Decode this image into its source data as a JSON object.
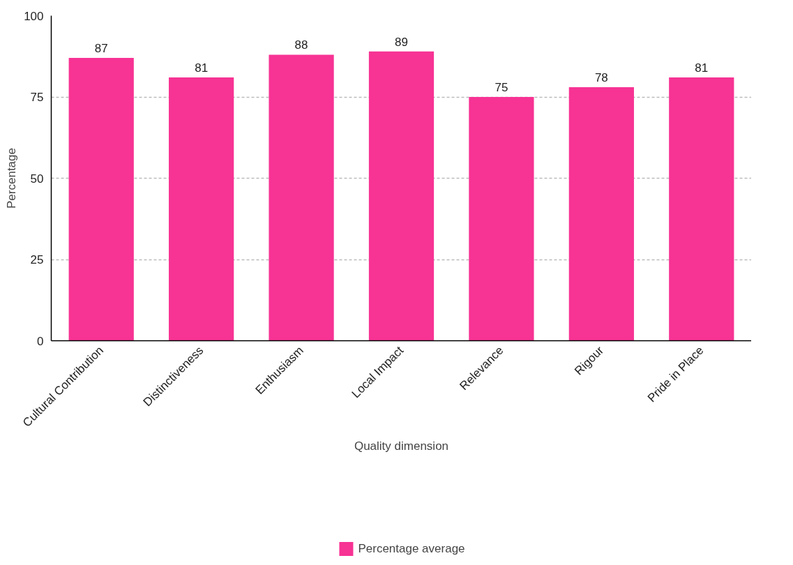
{
  "chart_data": {
    "type": "bar",
    "xlabel": "Quality dimension",
    "ylabel": "Percentage",
    "categories": [
      "Cultural Contribution",
      "Distinctiveness",
      "Enthusiasm",
      "Local Impact",
      "Relevance",
      "Rigour",
      "Pride in Place"
    ],
    "series": [
      {
        "name": "Percentage average",
        "color": "#f73394",
        "values": [
          87,
          81,
          88,
          89,
          75,
          78,
          81
        ]
      }
    ],
    "ylim": [
      0,
      100
    ],
    "yticks": [
      0,
      25,
      50,
      75,
      100
    ],
    "grid": "y",
    "legend": "bottom",
    "data_labels": true
  }
}
